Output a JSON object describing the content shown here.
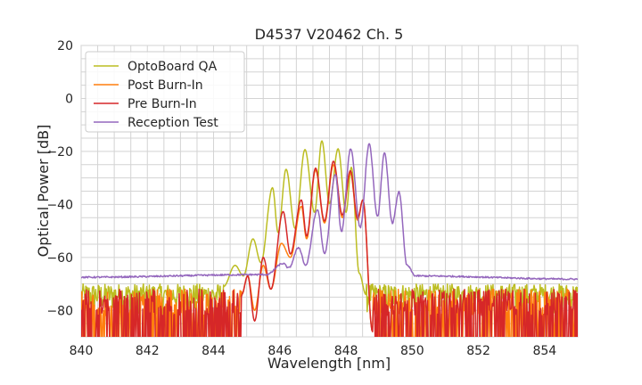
{
  "chart_data": {
    "type": "line",
    "title": "D4537 V20462 Ch. 5",
    "xlabel": "Wavelength [nm]",
    "ylabel": "Optical Power [dB]",
    "xlim": [
      840,
      855
    ],
    "ylim": [
      -90,
      20
    ],
    "xticks": [
      840,
      842,
      844,
      846,
      848,
      850,
      852,
      854
    ],
    "yticks": [
      20,
      0,
      -20,
      -40,
      -60,
      -80
    ],
    "grid": true,
    "minor_grid": true,
    "legend_position": "top-left",
    "series": [
      {
        "name": "OptoBoard QA",
        "color": "#bcbd22",
        "noise_floor_db": [
          -82,
          -70
        ],
        "points": [
          [
            844.3,
            -71
          ],
          [
            844.65,
            -63
          ],
          [
            844.9,
            -67
          ],
          [
            845.19,
            -53
          ],
          [
            845.43,
            -62
          ],
          [
            845.78,
            -33.7
          ],
          [
            845.95,
            -50.7
          ],
          [
            846.19,
            -26.7
          ],
          [
            846.46,
            -49
          ],
          [
            846.76,
            -19.3
          ],
          [
            847.05,
            -43
          ],
          [
            847.27,
            -16
          ],
          [
            847.5,
            -39.7
          ],
          [
            847.76,
            -19
          ],
          [
            848.0,
            -43
          ],
          [
            848.16,
            -26
          ],
          [
            848.4,
            -66
          ],
          [
            848.6,
            -74
          ]
        ]
      },
      {
        "name": "Post Burn-In",
        "color": "#ff7f0e",
        "noise_floor_db": [
          -90,
          -72
        ],
        "points": [
          [
            844.85,
            -74
          ],
          [
            845.03,
            -67
          ],
          [
            845.24,
            -80
          ],
          [
            845.5,
            -63
          ],
          [
            845.73,
            -72
          ],
          [
            846.05,
            -54.7
          ],
          [
            846.32,
            -60
          ],
          [
            846.65,
            -40.7
          ],
          [
            846.81,
            -53
          ],
          [
            847.08,
            -27
          ],
          [
            847.35,
            -47
          ],
          [
            847.62,
            -25
          ],
          [
            847.89,
            -45
          ],
          [
            848.13,
            -28
          ],
          [
            848.35,
            -46
          ],
          [
            848.51,
            -38.3
          ],
          [
            848.8,
            -88
          ]
        ]
      },
      {
        "name": "Pre Burn-In",
        "color": "#d62728",
        "noise_floor_db": [
          -90,
          -72
        ],
        "points": [
          [
            844.85,
            -74
          ],
          [
            845.03,
            -67
          ],
          [
            845.24,
            -84
          ],
          [
            845.5,
            -60
          ],
          [
            845.73,
            -72
          ],
          [
            846.1,
            -42.7
          ],
          [
            846.32,
            -58.7
          ],
          [
            846.65,
            -38.3
          ],
          [
            846.81,
            -52
          ],
          [
            847.08,
            -26.3
          ],
          [
            847.35,
            -46.3
          ],
          [
            847.62,
            -23.7
          ],
          [
            847.89,
            -44
          ],
          [
            848.13,
            -27.3
          ],
          [
            848.35,
            -45.3
          ],
          [
            848.51,
            -38.3
          ],
          [
            848.8,
            -88
          ]
        ]
      },
      {
        "name": "Reception Test",
        "color": "#9467bd",
        "noise_floor_db": [
          -68.5,
          -66.5
        ],
        "points": [
          [
            840,
            -67.5
          ],
          [
            845.6,
            -66.5
          ],
          [
            846.1,
            -62.3
          ],
          [
            846.27,
            -64
          ],
          [
            846.57,
            -56.3
          ],
          [
            846.78,
            -63
          ],
          [
            847.14,
            -42
          ],
          [
            847.35,
            -58.7
          ],
          [
            847.68,
            -28.7
          ],
          [
            847.86,
            -50.3
          ],
          [
            848.14,
            -19
          ],
          [
            848.43,
            -48.7
          ],
          [
            848.7,
            -17.3
          ],
          [
            848.95,
            -44.7
          ],
          [
            849.16,
            -20.7
          ],
          [
            849.4,
            -47
          ],
          [
            849.6,
            -35.3
          ],
          [
            849.84,
            -63
          ],
          [
            850.1,
            -67
          ],
          [
            855,
            -68.2
          ]
        ]
      }
    ]
  }
}
